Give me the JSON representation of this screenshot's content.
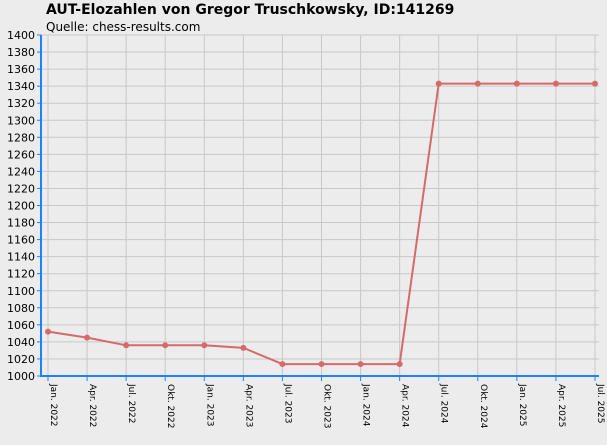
{
  "header": {
    "title": "AUT-Elozahlen von Gregor Truschkowsky, ID:141269",
    "subtitle": "Quelle: chess-results.com"
  },
  "colors": {
    "background": "#ececec",
    "plot_background": "#ececec",
    "grid": "#c8c8c8",
    "axis": "#2080ff",
    "line": "#d46a6a"
  },
  "chart_data": {
    "type": "line",
    "title": "AUT-Elozahlen von Gregor Truschkowsky, ID:141269",
    "subtitle": "Quelle: chess-results.com",
    "xlabel": "",
    "ylabel": "",
    "ylim": [
      1000,
      1400
    ],
    "ytick_step": 20,
    "grid": true,
    "legend": "none",
    "categories": [
      "Jan. 2022",
      "Apr. 2022",
      "Jul. 2022",
      "Okt. 2022",
      "Jan. 2023",
      "Apr. 2023",
      "Jul. 2023",
      "Okt. 2023",
      "Jan. 2024",
      "Apr. 2024",
      "Jul. 2024",
      "Okt. 2024",
      "Jan. 2025",
      "Apr. 2025",
      "Jul. 2025"
    ],
    "series": [
      {
        "values": [
          1052,
          1045,
          1036,
          1036,
          1036,
          1033,
          1014,
          1014,
          1014,
          1014,
          1343,
          1343,
          1343,
          1343,
          1343
        ]
      }
    ]
  }
}
